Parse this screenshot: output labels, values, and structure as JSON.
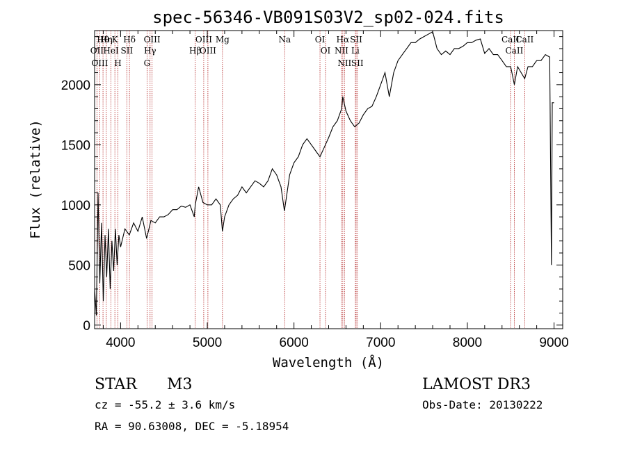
{
  "chart_data": {
    "type": "line",
    "title": "spec-56346-VB091S03V2_sp02-024.fits",
    "xlabel": "Wavelength (Å)",
    "ylabel": "Flux (relative)",
    "xlim": [
      3700,
      9100
    ],
    "ylim": [
      -30,
      2450
    ],
    "xticks": [
      4000,
      5000,
      6000,
      7000,
      8000,
      9000
    ],
    "xtick_labels": [
      "4000",
      "5000",
      "6000",
      "7000",
      "8000",
      "9000"
    ],
    "yticks": [
      0,
      500,
      1000,
      1500,
      2000
    ],
    "ytick_labels": [
      "0",
      "500",
      "1000",
      "1500",
      "2000"
    ],
    "series": [
      {
        "name": "flux",
        "color": "#000000",
        "points": [
          [
            3700,
            300
          ],
          [
            3720,
            80
          ],
          [
            3740,
            1100
          ],
          [
            3760,
            350
          ],
          [
            3780,
            850
          ],
          [
            3800,
            200
          ],
          [
            3820,
            750
          ],
          [
            3840,
            400
          ],
          [
            3860,
            800
          ],
          [
            3880,
            300
          ],
          [
            3900,
            700
          ],
          [
            3920,
            450
          ],
          [
            3940,
            800
          ],
          [
            3960,
            500
          ],
          [
            3980,
            750
          ],
          [
            4000,
            650
          ],
          [
            4050,
            800
          ],
          [
            4100,
            750
          ],
          [
            4150,
            850
          ],
          [
            4200,
            780
          ],
          [
            4250,
            900
          ],
          [
            4300,
            720
          ],
          [
            4350,
            870
          ],
          [
            4400,
            850
          ],
          [
            4450,
            900
          ],
          [
            4500,
            900
          ],
          [
            4550,
            920
          ],
          [
            4600,
            960
          ],
          [
            4650,
            960
          ],
          [
            4700,
            990
          ],
          [
            4750,
            980
          ],
          [
            4800,
            1000
          ],
          [
            4850,
            900
          ],
          [
            4861,
            1000
          ],
          [
            4900,
            1150
          ],
          [
            4950,
            1020
          ],
          [
            5000,
            1000
          ],
          [
            5050,
            1000
          ],
          [
            5100,
            1050
          ],
          [
            5150,
            1000
          ],
          [
            5175,
            780
          ],
          [
            5200,
            900
          ],
          [
            5250,
            1000
          ],
          [
            5300,
            1050
          ],
          [
            5350,
            1080
          ],
          [
            5400,
            1150
          ],
          [
            5450,
            1100
          ],
          [
            5500,
            1150
          ],
          [
            5550,
            1200
          ],
          [
            5600,
            1180
          ],
          [
            5650,
            1150
          ],
          [
            5700,
            1200
          ],
          [
            5750,
            1300
          ],
          [
            5800,
            1250
          ],
          [
            5850,
            1150
          ],
          [
            5890,
            950
          ],
          [
            5920,
            1100
          ],
          [
            5950,
            1250
          ],
          [
            6000,
            1350
          ],
          [
            6050,
            1400
          ],
          [
            6100,
            1500
          ],
          [
            6150,
            1550
          ],
          [
            6200,
            1500
          ],
          [
            6250,
            1450
          ],
          [
            6300,
            1400
          ],
          [
            6350,
            1480
          ],
          [
            6400,
            1560
          ],
          [
            6450,
            1650
          ],
          [
            6500,
            1700
          ],
          [
            6550,
            1800
          ],
          [
            6563,
            1900
          ],
          [
            6600,
            1780
          ],
          [
            6650,
            1700
          ],
          [
            6700,
            1650
          ],
          [
            6750,
            1680
          ],
          [
            6800,
            1750
          ],
          [
            6850,
            1800
          ],
          [
            6900,
            1820
          ],
          [
            6950,
            1900
          ],
          [
            7000,
            2000
          ],
          [
            7050,
            2100
          ],
          [
            7100,
            1900
          ],
          [
            7150,
            2100
          ],
          [
            7200,
            2200
          ],
          [
            7250,
            2250
          ],
          [
            7300,
            2300
          ],
          [
            7350,
            2350
          ],
          [
            7400,
            2350
          ],
          [
            7450,
            2380
          ],
          [
            7500,
            2400
          ],
          [
            7550,
            2420
          ],
          [
            7600,
            2440
          ],
          [
            7650,
            2300
          ],
          [
            7700,
            2250
          ],
          [
            7750,
            2280
          ],
          [
            7800,
            2250
          ],
          [
            7850,
            2300
          ],
          [
            7900,
            2300
          ],
          [
            7950,
            2320
          ],
          [
            8000,
            2350
          ],
          [
            8050,
            2350
          ],
          [
            8100,
            2370
          ],
          [
            8150,
            2380
          ],
          [
            8200,
            2260
          ],
          [
            8250,
            2300
          ],
          [
            8300,
            2250
          ],
          [
            8350,
            2250
          ],
          [
            8400,
            2200
          ],
          [
            8450,
            2150
          ],
          [
            8500,
            2150
          ],
          [
            8542,
            2000
          ],
          [
            8580,
            2150
          ],
          [
            8620,
            2100
          ],
          [
            8662,
            2050
          ],
          [
            8700,
            2150
          ],
          [
            8750,
            2150
          ],
          [
            8800,
            2200
          ],
          [
            8850,
            2200
          ],
          [
            8900,
            2250
          ],
          [
            8950,
            2230
          ],
          [
            8970,
            500
          ],
          [
            8980,
            1850
          ],
          [
            9000,
            1850
          ]
        ]
      }
    ],
    "emission_lines": [
      {
        "label": "Hθ",
        "wavelength": 3797
      },
      {
        "label": "OII",
        "wavelength": 3727
      },
      {
        "label": "OIII",
        "wavelength": 3760
      },
      {
        "label": "K",
        "wavelength": 3934
      },
      {
        "label": "HeI",
        "wavelength": 3889
      },
      {
        "label": "Hη",
        "wavelength": 3835
      },
      {
        "label": "H",
        "wavelength": 3969
      },
      {
        "label": "Hδ",
        "wavelength": 4102
      },
      {
        "label": "SII",
        "wavelength": 4072
      },
      {
        "label": "OIII",
        "wavelength": 4363
      },
      {
        "label": "Hγ",
        "wavelength": 4340
      },
      {
        "label": "G",
        "wavelength": 4305
      },
      {
        "label": "OIII",
        "wavelength": 4959
      },
      {
        "label": "OIII",
        "wavelength": 5007
      },
      {
        "label": "Hβ",
        "wavelength": 4861
      },
      {
        "label": "Mg",
        "wavelength": 5175
      },
      {
        "label": "Na",
        "wavelength": 5893
      },
      {
        "label": "OI",
        "wavelength": 6300
      },
      {
        "label": "OI",
        "wavelength": 6364
      },
      {
        "label": "Hα",
        "wavelength": 6563
      },
      {
        "label": "SII",
        "wavelength": 6717
      },
      {
        "label": "NII",
        "wavelength": 6548
      },
      {
        "label": "Li",
        "wavelength": 6708
      },
      {
        "label": "NII",
        "wavelength": 6583
      },
      {
        "label": "SII",
        "wavelength": 6731
      },
      {
        "label": "CaII",
        "wavelength": 8498
      },
      {
        "label": "CaII",
        "wavelength": 8542
      },
      {
        "label": "CaII",
        "wavelength": 8662
      }
    ]
  },
  "info": {
    "object_type": "STAR",
    "subclass": "M3",
    "survey": "LAMOST DR3",
    "velocity": "cz = -55.2 ± 3.6 km/s",
    "obs_date": "Obs-Date: 20130222",
    "coords": "RA =  90.63008, DEC =  -5.18954"
  }
}
